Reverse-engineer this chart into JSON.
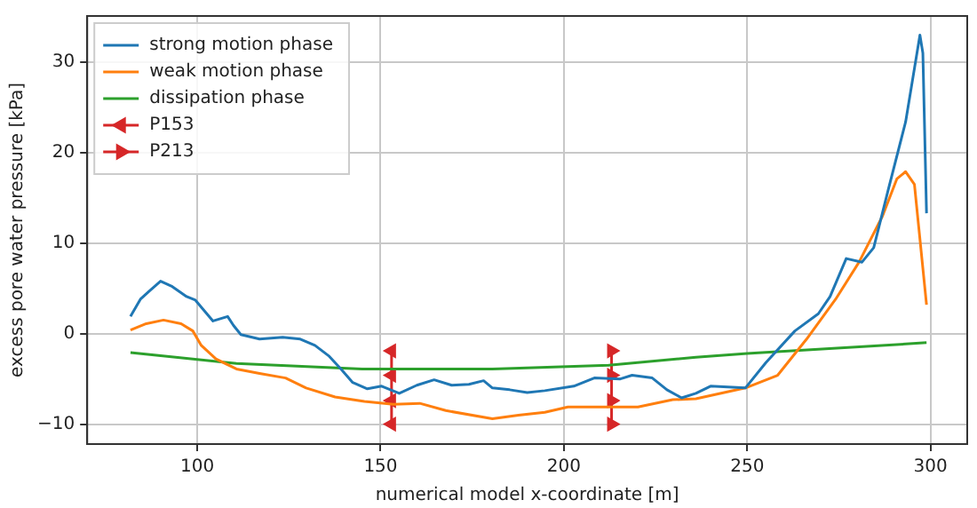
{
  "chart_data": {
    "type": "line",
    "xlabel": "numerical model x-coordinate [m]",
    "ylabel": "excess pore water pressure [kPa]",
    "xlim": [
      70,
      310
    ],
    "xticks": [
      100,
      150,
      200,
      250,
      300
    ],
    "ylim": [
      -12.2,
      35.1
    ],
    "yticks": [
      {
        "value": -10,
        "label": "−10"
      },
      0,
      10,
      20,
      30
    ],
    "grid": true,
    "legend": "top left",
    "series": [
      {
        "name": "strong motion phase",
        "color": "#1f77b4",
        "x": [
          81.8,
          84.5,
          86.9,
          90,
          93.2,
          97.1,
          99.5,
          102,
          104.3,
          106.7,
          108.3,
          109.9,
          111.9,
          117,
          123.3,
          128.1,
          132.1,
          136,
          139.2,
          142.4,
          146.4,
          150.3,
          155.1,
          159.9,
          164.6,
          169.4,
          174.1,
          178.1,
          180.5,
          185.2,
          190,
          194.8,
          202.7,
          208.3,
          215.4,
          218.6,
          224.1,
          228.1,
          232.1,
          236,
          240,
          249.5,
          255.1,
          263,
          269.4,
          272.6,
          277,
          281.3,
          284.5,
          288.4,
          293.2,
          297.1,
          297.9,
          298.9
        ],
        "values": [
          1.9,
          3.8,
          4.7,
          5.8,
          5.2,
          4.1,
          3.7,
          2.5,
          1.4,
          1.7,
          1.9,
          0.9,
          -0.1,
          -0.6,
          -0.4,
          -0.6,
          -1.3,
          -2.5,
          -3.9,
          -5.4,
          -6.1,
          -5.8,
          -6.6,
          -5.7,
          -5.1,
          -5.7,
          -5.6,
          -5.2,
          -6.0,
          -6.2,
          -6.5,
          -6.3,
          -5.8,
          -4.9,
          -5.0,
          -4.6,
          -4.9,
          -6.2,
          -7.1,
          -6.6,
          -5.8,
          -6.0,
          -3.2,
          0.3,
          2.2,
          4.1,
          8.3,
          7.9,
          9.5,
          15.8,
          23.4,
          33.0,
          31,
          13.3
        ]
      },
      {
        "name": "weak motion phase",
        "color": "#ff7f0e",
        "x": [
          81.8,
          86.1,
          90.8,
          95.6,
          98.8,
          101.1,
          105.1,
          110.7,
          117,
          124.1,
          129.7,
          137.6,
          145.6,
          153.5,
          160.7,
          167.8,
          180.5,
          187.6,
          194.8,
          201.1,
          220.2,
          229.7,
          236,
          249.5,
          258.3,
          266.2,
          274.1,
          280.5,
          286.9,
          290.8,
          293.2,
          295.6,
          298.9
        ],
        "values": [
          0.4,
          1.1,
          1.5,
          1.1,
          0.3,
          -1.3,
          -2.8,
          -3.9,
          -4.4,
          -4.9,
          -6.0,
          -7.0,
          -7.5,
          -7.8,
          -7.7,
          -8.5,
          -9.4,
          -9.0,
          -8.7,
          -8.1,
          -8.1,
          -7.3,
          -7.2,
          -6.0,
          -4.6,
          -0.6,
          3.8,
          7.9,
          13,
          17.1,
          17.9,
          16.5,
          3.2
        ]
      },
      {
        "name": "dissipation phase",
        "color": "#2ca02c",
        "x": [
          81.8,
          110.7,
          145,
          180.5,
          212.2,
          236,
          250,
          298.9
        ],
        "values": [
          -2.1,
          -3.3,
          -3.9,
          -3.9,
          -3.5,
          -2.6,
          -2.2,
          -1.0
        ]
      },
      {
        "name": "P153",
        "color": "#d62728",
        "marker": "triangle",
        "x": [
          153,
          153,
          153,
          153
        ],
        "values": [
          -1.9,
          -4.6,
          -7.4,
          -10
        ]
      },
      {
        "name": "P213",
        "color": "#d62728",
        "marker": "triangle",
        "x": [
          213,
          213,
          213,
          213
        ],
        "values": [
          -1.9,
          -4.6,
          -7.4,
          -10
        ]
      }
    ]
  }
}
